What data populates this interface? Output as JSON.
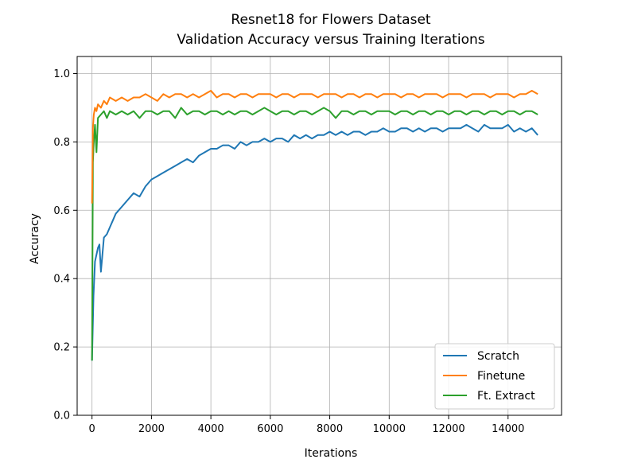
{
  "chart_data": {
    "type": "line",
    "title": "Resnet18 for Flowers Dataset",
    "subtitle": "Validation Accuracy versus Training Iterations",
    "xlabel": "Iterations",
    "ylabel": "Accuracy",
    "xlim": [
      -500,
      15800
    ],
    "ylim": [
      0.0,
      1.05
    ],
    "xticks": [
      0,
      2000,
      4000,
      6000,
      8000,
      10000,
      12000,
      14000
    ],
    "xtick_labels": [
      "0",
      "2000",
      "4000",
      "6000",
      "8000",
      "10000",
      "12000",
      "14000"
    ],
    "yticks": [
      0.0,
      0.2,
      0.4,
      0.6,
      0.8,
      1.0
    ],
    "ytick_labels": [
      "0.0",
      "0.2",
      "0.4",
      "0.6",
      "0.8",
      "1.0"
    ],
    "grid": true,
    "legend_position": "lower-right",
    "series": [
      {
        "name": "Scratch",
        "color": "#1f77b4",
        "x": [
          0,
          50,
          100,
          150,
          200,
          250,
          300,
          400,
          500,
          600,
          700,
          800,
          1000,
          1200,
          1400,
          1600,
          1800,
          2000,
          2200,
          2400,
          2600,
          2800,
          3000,
          3200,
          3400,
          3600,
          3800,
          4000,
          4200,
          4400,
          4600,
          4800,
          5000,
          5200,
          5400,
          5600,
          5800,
          6000,
          6200,
          6400,
          6600,
          6800,
          7000,
          7200,
          7400,
          7600,
          7800,
          8000,
          8200,
          8400,
          8600,
          8800,
          9000,
          9200,
          9400,
          9600,
          9800,
          10000,
          10200,
          10400,
          10600,
          10800,
          11000,
          11200,
          11400,
          11600,
          11800,
          12000,
          12200,
          12400,
          12600,
          12800,
          13000,
          13200,
          13400,
          13600,
          13800,
          14000,
          14200,
          14400,
          14600,
          14800,
          15000
        ],
        "values": [
          0.16,
          0.35,
          0.45,
          0.47,
          0.49,
          0.5,
          0.42,
          0.52,
          0.53,
          0.55,
          0.57,
          0.59,
          0.61,
          0.63,
          0.65,
          0.64,
          0.67,
          0.69,
          0.7,
          0.71,
          0.72,
          0.73,
          0.74,
          0.75,
          0.74,
          0.76,
          0.77,
          0.78,
          0.78,
          0.79,
          0.79,
          0.78,
          0.8,
          0.79,
          0.8,
          0.8,
          0.81,
          0.8,
          0.81,
          0.81,
          0.8,
          0.82,
          0.81,
          0.82,
          0.81,
          0.82,
          0.82,
          0.83,
          0.82,
          0.83,
          0.82,
          0.83,
          0.83,
          0.82,
          0.83,
          0.83,
          0.84,
          0.83,
          0.83,
          0.84,
          0.84,
          0.83,
          0.84,
          0.83,
          0.84,
          0.84,
          0.83,
          0.84,
          0.84,
          0.84,
          0.85,
          0.84,
          0.83,
          0.85,
          0.84,
          0.84,
          0.84,
          0.85,
          0.83,
          0.84,
          0.83,
          0.84,
          0.82
        ]
      },
      {
        "name": "Finetune",
        "color": "#ff7f0e",
        "x": [
          0,
          30,
          60,
          100,
          150,
          200,
          300,
          400,
          500,
          600,
          800,
          1000,
          1200,
          1400,
          1600,
          1800,
          2000,
          2200,
          2400,
          2600,
          2800,
          3000,
          3200,
          3400,
          3600,
          3800,
          4000,
          4200,
          4400,
          4600,
          4800,
          5000,
          5200,
          5400,
          5600,
          5800,
          6000,
          6200,
          6400,
          6600,
          6800,
          7000,
          7200,
          7400,
          7600,
          7800,
          8000,
          8200,
          8400,
          8600,
          8800,
          9000,
          9200,
          9400,
          9600,
          9800,
          10000,
          10200,
          10400,
          10600,
          10800,
          11000,
          11200,
          11400,
          11600,
          11800,
          12000,
          12200,
          12400,
          12600,
          12800,
          13000,
          13200,
          13400,
          13600,
          13800,
          14000,
          14200,
          14400,
          14600,
          14800,
          15000
        ],
        "values": [
          0.62,
          0.84,
          0.88,
          0.9,
          0.89,
          0.91,
          0.9,
          0.92,
          0.91,
          0.93,
          0.92,
          0.93,
          0.92,
          0.93,
          0.93,
          0.94,
          0.93,
          0.92,
          0.94,
          0.93,
          0.94,
          0.94,
          0.93,
          0.94,
          0.93,
          0.94,
          0.95,
          0.93,
          0.94,
          0.94,
          0.93,
          0.94,
          0.94,
          0.93,
          0.94,
          0.94,
          0.94,
          0.93,
          0.94,
          0.94,
          0.93,
          0.94,
          0.94,
          0.94,
          0.93,
          0.94,
          0.94,
          0.94,
          0.93,
          0.94,
          0.94,
          0.93,
          0.94,
          0.94,
          0.93,
          0.94,
          0.94,
          0.94,
          0.93,
          0.94,
          0.94,
          0.93,
          0.94,
          0.94,
          0.94,
          0.93,
          0.94,
          0.94,
          0.94,
          0.93,
          0.94,
          0.94,
          0.94,
          0.93,
          0.94,
          0.94,
          0.94,
          0.93,
          0.94,
          0.94,
          0.95,
          0.94
        ]
      },
      {
        "name": "Ft. Extract",
        "color": "#2ca02c",
        "x": [
          0,
          30,
          60,
          100,
          150,
          200,
          300,
          400,
          500,
          600,
          800,
          1000,
          1200,
          1400,
          1600,
          1800,
          2000,
          2200,
          2400,
          2600,
          2800,
          3000,
          3200,
          3400,
          3600,
          3800,
          4000,
          4200,
          4400,
          4600,
          4800,
          5000,
          5200,
          5400,
          5600,
          5800,
          6000,
          6200,
          6400,
          6600,
          6800,
          7000,
          7200,
          7400,
          7600,
          7800,
          8000,
          8200,
          8400,
          8600,
          8800,
          9000,
          9200,
          9400,
          9600,
          9800,
          10000,
          10200,
          10400,
          10600,
          10800,
          11000,
          11200,
          11400,
          11600,
          11800,
          12000,
          12200,
          12400,
          12600,
          12800,
          13000,
          13200,
          13400,
          13600,
          13800,
          14000,
          14200,
          14400,
          14600,
          14800,
          15000
        ],
        "values": [
          0.16,
          0.74,
          0.8,
          0.85,
          0.77,
          0.87,
          0.88,
          0.89,
          0.87,
          0.89,
          0.88,
          0.89,
          0.88,
          0.89,
          0.87,
          0.89,
          0.89,
          0.88,
          0.89,
          0.89,
          0.87,
          0.9,
          0.88,
          0.89,
          0.89,
          0.88,
          0.89,
          0.89,
          0.88,
          0.89,
          0.88,
          0.89,
          0.89,
          0.88,
          0.89,
          0.9,
          0.89,
          0.88,
          0.89,
          0.89,
          0.88,
          0.89,
          0.89,
          0.88,
          0.89,
          0.9,
          0.89,
          0.87,
          0.89,
          0.89,
          0.88,
          0.89,
          0.89,
          0.88,
          0.89,
          0.89,
          0.89,
          0.88,
          0.89,
          0.89,
          0.88,
          0.89,
          0.89,
          0.88,
          0.89,
          0.89,
          0.88,
          0.89,
          0.89,
          0.88,
          0.89,
          0.89,
          0.88,
          0.89,
          0.89,
          0.88,
          0.89,
          0.89,
          0.88,
          0.89,
          0.89,
          0.88
        ]
      }
    ]
  }
}
